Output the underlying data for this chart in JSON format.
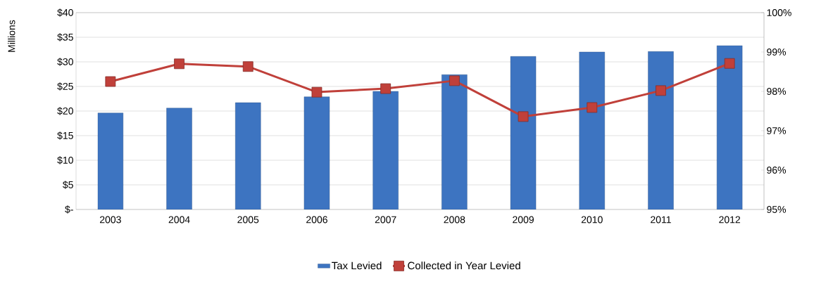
{
  "chart_data": {
    "type": "bar",
    "ylabel": "Millions",
    "categories": [
      "2003",
      "2004",
      "2005",
      "2006",
      "2007",
      "2008",
      "2009",
      "2010",
      "2011",
      "2012"
    ],
    "series": [
      {
        "name": "Tax Levied",
        "color": "#3d74c1",
        "values": [
          19.6,
          20.6,
          21.7,
          22.9,
          24.0,
          27.4,
          31.1,
          32.0,
          32.1,
          33.3
        ]
      },
      {
        "name": "Collected in Year Levied",
        "type": "line",
        "axis": "y2",
        "color": "#c0403a",
        "values": [
          98.25,
          98.7,
          98.63,
          97.98,
          98.07,
          98.27,
          97.36,
          97.59,
          98.02,
          98.71
        ]
      }
    ],
    "ylim": [
      0,
      40
    ],
    "yticks": [
      {
        "value": 0,
        "label": "$-"
      },
      {
        "value": 5,
        "label": "$5"
      },
      {
        "value": 10,
        "label": "$10"
      },
      {
        "value": 15,
        "label": "$15"
      },
      {
        "value": 20,
        "label": "$20"
      },
      {
        "value": 25,
        "label": "$25"
      },
      {
        "value": 30,
        "label": "$30"
      },
      {
        "value": 35,
        "label": "$35"
      },
      {
        "value": 40,
        "label": "$40"
      }
    ],
    "y2lim": [
      95,
      100
    ],
    "y2ticks": [
      {
        "value": 95,
        "label": "95%"
      },
      {
        "value": 96,
        "label": "96%"
      },
      {
        "value": 97,
        "label": "97%"
      },
      {
        "value": 98,
        "label": "98%"
      },
      {
        "value": 99,
        "label": "99%"
      },
      {
        "value": 100,
        "label": "100%"
      }
    ],
    "grid": "y",
    "legend": "bottom",
    "marker": "square"
  }
}
